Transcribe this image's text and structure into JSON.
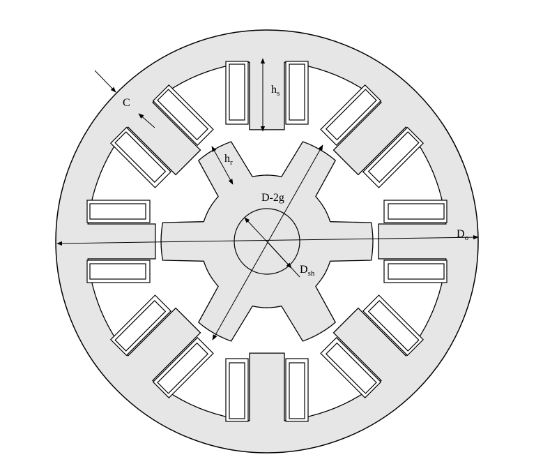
{
  "diagram": {
    "labels": {
      "outer_diameter": {
        "main": "D",
        "sub": "o"
      },
      "stator_pole_height": {
        "main": "h",
        "sub": "s"
      },
      "rotor_pole_height": {
        "main": "h",
        "sub": "r"
      },
      "back_iron_thickness": {
        "main": "C",
        "sub": ""
      },
      "rotor_diameter": {
        "main": "D-2g",
        "sub": ""
      },
      "shaft_diameter": {
        "main": "D",
        "sub": "sh"
      }
    },
    "geometry_description": {
      "stator_poles": 8,
      "rotor_poles": 6
    },
    "colors": {
      "iron_fill": "#e6e6e6",
      "stroke": "#000000",
      "background": "#ffffff"
    }
  }
}
